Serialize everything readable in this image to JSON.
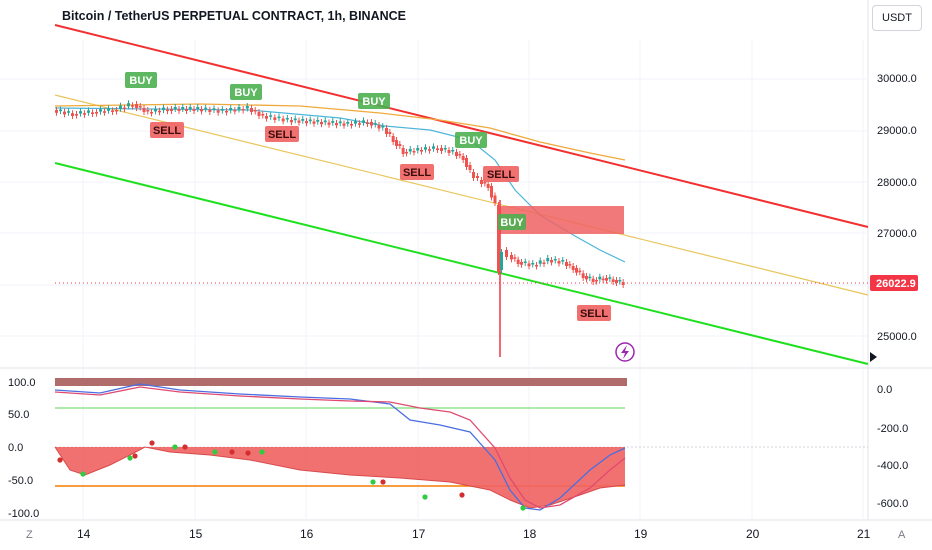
{
  "chart": {
    "title": "Bitcoin / TetherUS PERPETUAL CONTRACT, 1h, BINANCE",
    "currency": "USDT",
    "price_axis_labels": [
      "30000.0",
      "29000.0",
      "28000.0",
      "27000.0",
      "25000.0"
    ],
    "last_price": "26022.9",
    "signals": [
      {
        "text": "BUY",
        "type": "buy"
      },
      {
        "text": "BUY",
        "type": "buy"
      },
      {
        "text": "BUY",
        "type": "buy"
      },
      {
        "text": "BUY",
        "type": "buy"
      },
      {
        "text": "BUY",
        "type": "buy"
      },
      {
        "text": "SELL",
        "type": "sell"
      },
      {
        "text": "SELL",
        "type": "sell"
      },
      {
        "text": "SELL",
        "type": "sell"
      },
      {
        "text": "SELL",
        "type": "sell"
      },
      {
        "text": "SELL",
        "type": "sell"
      }
    ]
  },
  "oscillator": {
    "left_axis": [
      "100.0",
      "50.0",
      "0.0",
      "-50.0",
      "-100.0"
    ],
    "right_axis": [
      "0.0",
      "-200.0",
      "-400.0",
      "-600.0"
    ]
  },
  "time_axis": [
    "14",
    "15",
    "16",
    "17",
    "18",
    "19",
    "20",
    "21"
  ],
  "corner_left": "Z",
  "corner_right": "A",
  "colors": {
    "buy": "#4caf50",
    "sell": "#f06262",
    "upper_channel": "#f23030",
    "lower_channel": "#1fe01f",
    "mid_channel": "#e8c65a",
    "price_tag": "#f23645"
  },
  "chart_data": {
    "type": "line",
    "x": [
      "14",
      "15",
      "16",
      "17",
      "18",
      "19",
      "20",
      "21"
    ],
    "series": [
      {
        "values": [
          29350,
          29400,
          29300,
          28650,
          26500,
          26022.9,
          null,
          null
        ]
      }
    ],
    "ylim": [
      24500,
      31000
    ]
  }
}
